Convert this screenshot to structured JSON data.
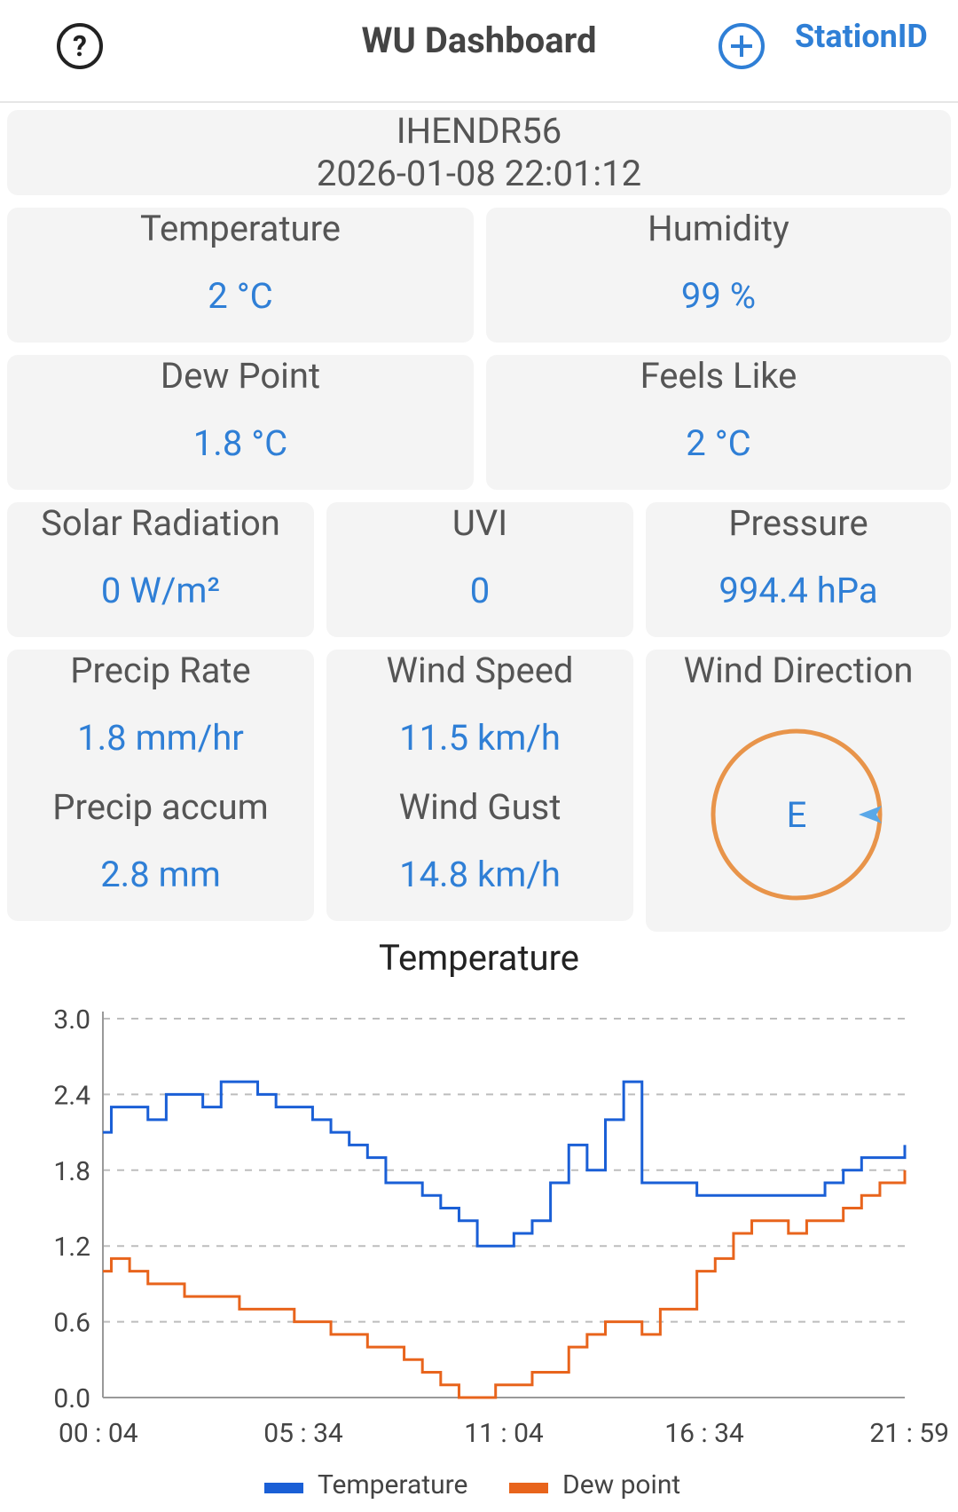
{
  "header": {
    "title": "WU Dashboard",
    "station_link": "StationID",
    "help_icon": "help-circle-icon",
    "add_icon": "add-circle-icon"
  },
  "station": {
    "id": "IHENDR56",
    "timestamp": "2026-01-08 22:01:12"
  },
  "cards": {
    "temperature": {
      "label": "Temperature",
      "value": "2 °C"
    },
    "humidity": {
      "label": "Humidity",
      "value": "99 %"
    },
    "dew_point": {
      "label": "Dew Point",
      "value": "1.8 °C"
    },
    "feels_like": {
      "label": "Feels Like",
      "value": "2 °C"
    },
    "solar": {
      "label": "Solar Radiation",
      "value": "0 W/m²"
    },
    "uvi": {
      "label": "UVI",
      "value": "0"
    },
    "pressure": {
      "label": "Pressure",
      "value": "994.4 hPa"
    },
    "precip_rate": {
      "label": "Precip Rate",
      "value": "1.8 mm/hr"
    },
    "precip_accum": {
      "label": "Precip accum",
      "value": "2.8 mm"
    },
    "wind_speed": {
      "label": "Wind Speed",
      "value": "11.5 km/h"
    },
    "wind_gust": {
      "label": "Wind Gust",
      "value": "14.8 km/h"
    },
    "wind_direction": {
      "label": "Wind Direction",
      "value": "E",
      "degrees": 90
    }
  },
  "colors": {
    "accent": "#2f7fd6",
    "temperature": "#1a5fd6",
    "dew": "#e8641c",
    "compass_ring": "#e8944a"
  },
  "chart_data": {
    "type": "line",
    "title": "Temperature",
    "x_ticks": [
      "00 : 04",
      "05 : 34",
      "11 : 04",
      "16 : 34",
      "21 : 59"
    ],
    "y_ticks": [
      "0.0",
      "0.6",
      "1.2",
      "1.8",
      "2.4",
      "3.0"
    ],
    "ylim": [
      0,
      3.0
    ],
    "grid": true,
    "legend": "bottom",
    "x_hours": [
      0.07,
      0.3,
      0.8,
      1.3,
      1.8,
      2.3,
      2.8,
      3.3,
      3.8,
      4.3,
      4.8,
      5.3,
      5.8,
      6.3,
      6.8,
      7.3,
      7.8,
      8.3,
      8.8,
      9.3,
      9.8,
      10.3,
      10.8,
      11.3,
      11.8,
      12.3,
      12.8,
      13.3,
      13.8,
      14.3,
      14.8,
      15.3,
      15.8,
      16.3,
      16.8,
      17.3,
      17.8,
      18.3,
      18.8,
      19.3,
      19.8,
      20.3,
      20.8,
      21.3,
      21.98
    ],
    "series": [
      {
        "name": "Temperature",
        "values": [
          2.1,
          2.3,
          2.3,
          2.2,
          2.4,
          2.4,
          2.3,
          2.5,
          2.5,
          2.4,
          2.3,
          2.3,
          2.2,
          2.1,
          2.0,
          1.9,
          1.7,
          1.7,
          1.6,
          1.5,
          1.4,
          1.2,
          1.2,
          1.3,
          1.4,
          1.7,
          2.0,
          1.8,
          2.2,
          2.5,
          1.7,
          1.7,
          1.7,
          1.6,
          1.6,
          1.6,
          1.6,
          1.6,
          1.6,
          1.6,
          1.7,
          1.8,
          1.9,
          1.9,
          2.0
        ]
      },
      {
        "name": "Dew point",
        "values": [
          1.0,
          1.1,
          1.0,
          0.9,
          0.9,
          0.8,
          0.8,
          0.8,
          0.7,
          0.7,
          0.7,
          0.6,
          0.6,
          0.5,
          0.5,
          0.4,
          0.4,
          0.3,
          0.2,
          0.1,
          0.0,
          0.0,
          0.1,
          0.1,
          0.2,
          0.2,
          0.4,
          0.5,
          0.6,
          0.6,
          0.5,
          0.7,
          0.7,
          1.0,
          1.1,
          1.3,
          1.4,
          1.4,
          1.3,
          1.4,
          1.4,
          1.5,
          1.6,
          1.7,
          1.8
        ]
      }
    ]
  }
}
